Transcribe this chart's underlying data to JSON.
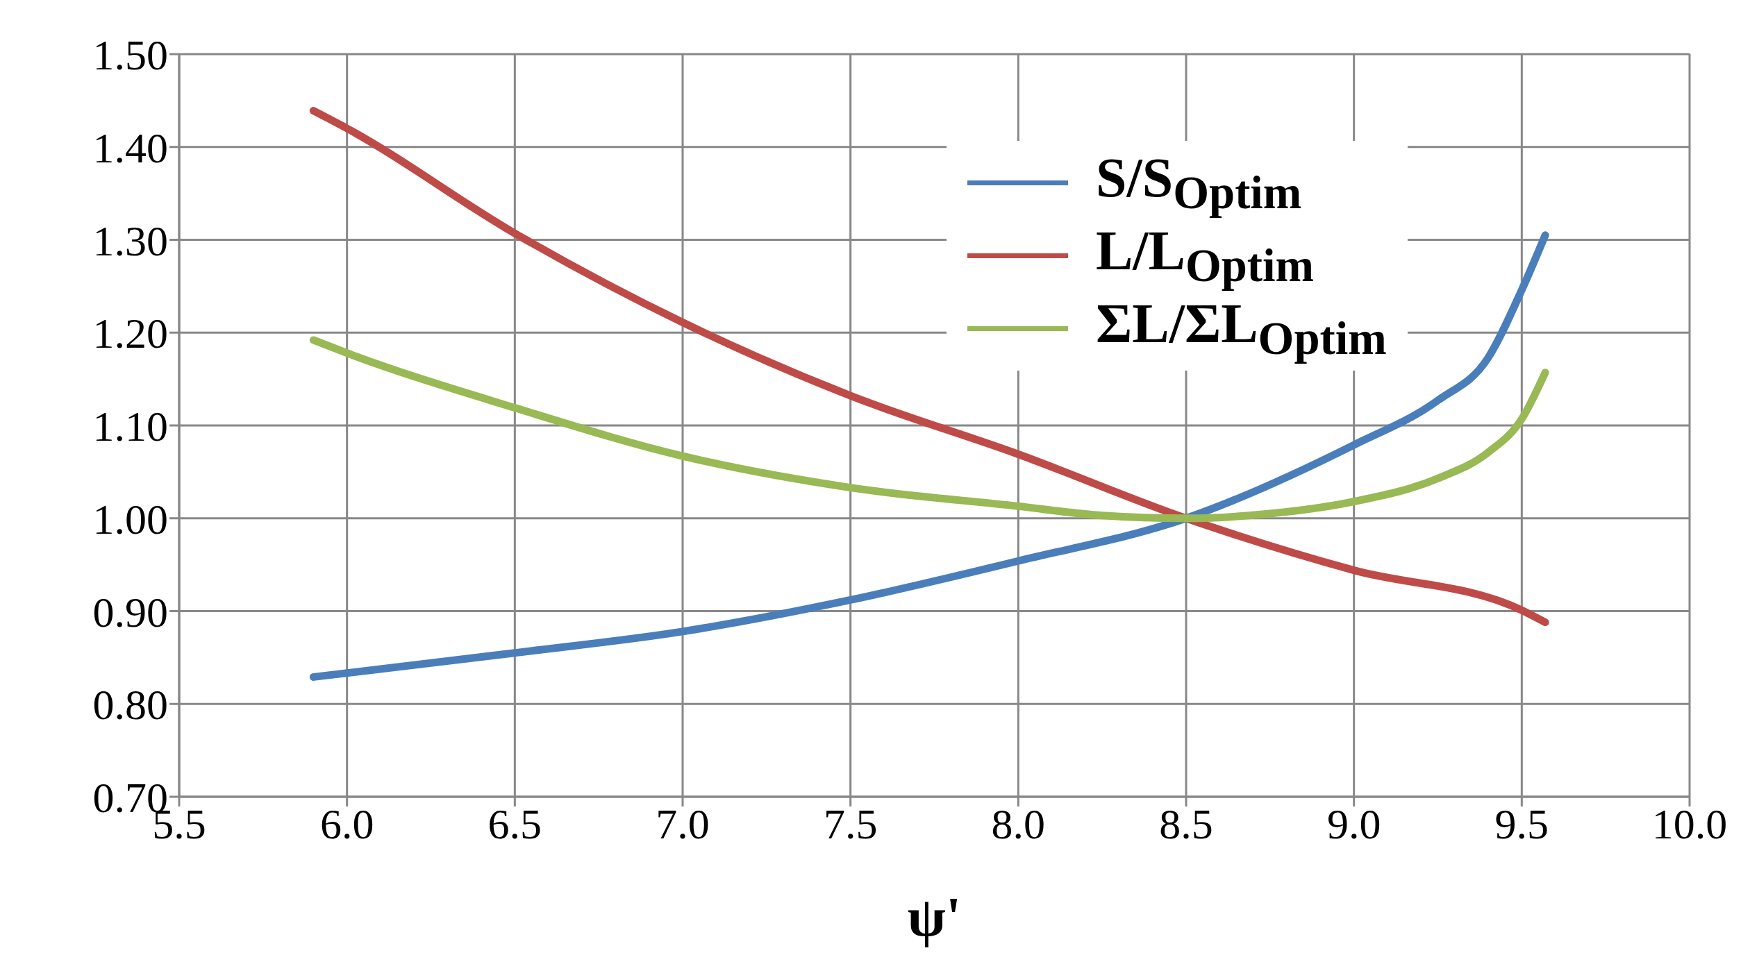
{
  "chart_data": {
    "type": "line",
    "xlabel": "ψ'",
    "xlim": [
      5.5,
      10.0
    ],
    "xticks": [
      {
        "value": 5.5,
        "label": "5.5"
      },
      {
        "value": 6,
        "label": "6.0"
      },
      {
        "value": 6.5,
        "label": "6.5"
      },
      {
        "value": 7,
        "label": "7.0"
      },
      {
        "value": 7.5,
        "label": "7.5"
      },
      {
        "value": 8,
        "label": "8.0"
      },
      {
        "value": 8.5,
        "label": "8.5"
      },
      {
        "value": 9,
        "label": "9.0"
      },
      {
        "value": 9.5,
        "label": "9.5"
      },
      {
        "value": 10,
        "label": "10.0"
      }
    ],
    "ylim": [
      0.7,
      1.5
    ],
    "yticks": [
      {
        "value": 0.7,
        "label": "0.70"
      },
      {
        "value": 0.8,
        "label": "0.80"
      },
      {
        "value": 0.9,
        "label": "0.90"
      },
      {
        "value": 1.0,
        "label": "1.00"
      },
      {
        "value": 1.1,
        "label": "1.10"
      },
      {
        "value": 1.2,
        "label": "1.20"
      },
      {
        "value": 1.3,
        "label": "1.30"
      },
      {
        "value": 1.4,
        "label": "1.40"
      },
      {
        "value": 1.5,
        "label": "1.50"
      }
    ],
    "grid": true,
    "legend": "top right",
    "marker": "none",
    "line_style": "solid",
    "series": [
      {
        "name": "S/S$_{Optim}$",
        "color": "#4a7ebb",
        "x": [
          5.9,
          6.5,
          7.0,
          7.5,
          8.0,
          8.5,
          9.0,
          9.25,
          9.4,
          9.5,
          9.57
        ],
        "values": [
          0.829,
          0.855,
          0.878,
          0.912,
          0.954,
          1.0,
          1.079,
          1.127,
          1.173,
          1.246,
          1.305
        ]
      },
      {
        "name": "L/L$_{Optim}$",
        "color": "#be4b48",
        "x": [
          5.9,
          6.0,
          6.5,
          7.0,
          7.5,
          8.0,
          8.5,
          9.0,
          9.5,
          9.57
        ],
        "values": [
          1.439,
          1.42,
          1.307,
          1.211,
          1.132,
          1.069,
          1.0,
          0.944,
          0.901,
          0.888
        ]
      },
      {
        "name": "ΣL/ΣL$_{Optim}$",
        "color": "#98b954",
        "x": [
          5.9,
          6.0,
          6.5,
          7.0,
          7.5,
          8.0,
          8.25,
          8.5,
          8.75,
          9.0,
          9.25,
          9.4,
          9.5,
          9.57
        ],
        "values": [
          1.192,
          1.178,
          1.119,
          1.067,
          1.033,
          1.013,
          1.003,
          1.0,
          1.005,
          1.018,
          1.043,
          1.071,
          1.107,
          1.157
        ]
      }
    ]
  }
}
